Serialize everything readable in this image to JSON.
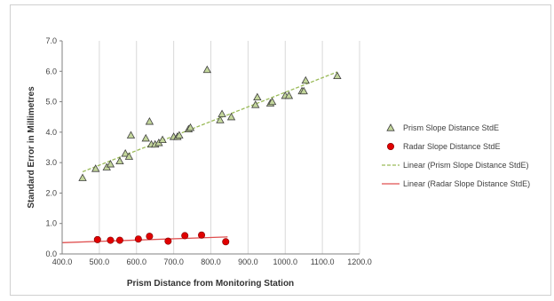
{
  "chart_data": {
    "type": "scatter",
    "title": "",
    "xlabel": "Prism Distance from Monitoring Station",
    "ylabel": "Standard Error in Millimetres",
    "xlim": [
      400,
      1200
    ],
    "ylim": [
      0,
      7
    ],
    "x_ticks": [
      "400.0",
      "500.0",
      "600.0",
      "700.0",
      "800.0",
      "900.0",
      "1000.0",
      "1100.0",
      "1200.0"
    ],
    "y_ticks": [
      "0.0",
      "1.0",
      "2.0",
      "3.0",
      "4.0",
      "5.0",
      "6.0",
      "7.0"
    ],
    "grid": "vertical gridlines",
    "legend_position": "right",
    "series": [
      {
        "name": "Prism Slope Distance StdE",
        "marker": "triangle",
        "color": "#c3d69b",
        "stroke": "#3f3f3f",
        "x": [
          455,
          490,
          520,
          530,
          555,
          570,
          580,
          585,
          625,
          635,
          640,
          650,
          660,
          670,
          700,
          710,
          715,
          740,
          745,
          790,
          825,
          830,
          855,
          920,
          925,
          960,
          965,
          1000,
          1010,
          1045,
          1050,
          1055,
          1140
        ],
        "y": [
          2.5,
          2.8,
          2.85,
          2.95,
          3.05,
          3.3,
          3.2,
          3.9,
          3.8,
          4.35,
          3.6,
          3.6,
          3.65,
          3.75,
          3.85,
          3.85,
          3.9,
          4.1,
          4.15,
          6.05,
          4.4,
          4.6,
          4.5,
          4.9,
          5.15,
          4.95,
          5.0,
          5.2,
          5.2,
          5.35,
          5.35,
          5.7,
          5.85
        ]
      },
      {
        "name": "Radar Slope Distance StdE",
        "marker": "circle",
        "color": "#e00000",
        "stroke": "#800000",
        "x": [
          495,
          530,
          555,
          605,
          635,
          685,
          730,
          775,
          840
        ],
        "y": [
          0.47,
          0.45,
          0.45,
          0.49,
          0.58,
          0.42,
          0.6,
          0.62,
          0.4
        ]
      }
    ],
    "trendlines": [
      {
        "name": "Linear (Prism Slope Distance StdE)",
        "style": "dashed",
        "color": "#9bbb59",
        "x": [
          455,
          1140
        ],
        "y": [
          2.7,
          5.98
        ]
      },
      {
        "name": "Linear (Radar Slope Distance StdE)",
        "style": "solid",
        "color": "#e05050",
        "x": [
          400,
          845
        ],
        "y": [
          0.37,
          0.56
        ]
      }
    ]
  }
}
